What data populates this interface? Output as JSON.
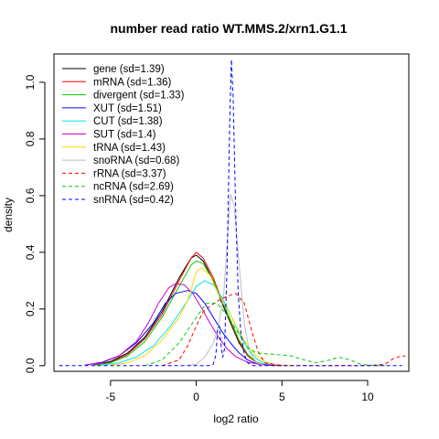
{
  "chart_data": {
    "type": "line",
    "title": "number read ratio WT.MMS.2/xrn1.G1.1",
    "xlabel": "log2 ratio",
    "ylabel": "density",
    "xlim": [
      -8.3,
      12.4
    ],
    "ylim": [
      -0.02,
      1.1
    ],
    "xticks": [
      -5,
      0,
      5,
      10
    ],
    "yticks": [
      0.0,
      0.2,
      0.4,
      0.6,
      0.8,
      1.0
    ],
    "xtick_labels": [
      "-5",
      "0",
      "5",
      "10"
    ],
    "ytick_labels": [
      "0.0",
      "0.2",
      "0.4",
      "0.6",
      "0.8",
      "1.0"
    ],
    "grid": false,
    "legend_position": "top-left",
    "series": [
      {
        "name": "gene (sd=1.39)",
        "color": "#000000",
        "dash": false,
        "points": [
          [
            -6,
            0.002
          ],
          [
            -5,
            0.015
          ],
          [
            -4,
            0.045
          ],
          [
            -3,
            0.1
          ],
          [
            -2,
            0.19
          ],
          [
            -1,
            0.31
          ],
          [
            -0.3,
            0.38
          ],
          [
            0,
            0.39
          ],
          [
            0.4,
            0.37
          ],
          [
            1,
            0.3
          ],
          [
            1.5,
            0.22
          ],
          [
            2,
            0.15
          ],
          [
            2.5,
            0.08
          ],
          [
            3,
            0.035
          ],
          [
            3.5,
            0.012
          ],
          [
            4,
            0.003
          ],
          [
            5,
            0
          ]
        ]
      },
      {
        "name": "mRNA (sd=1.36)",
        "color": "#ff0000",
        "dash": false,
        "points": [
          [
            -6,
            0.002
          ],
          [
            -5,
            0.012
          ],
          [
            -4,
            0.04
          ],
          [
            -3,
            0.095
          ],
          [
            -2,
            0.18
          ],
          [
            -1,
            0.3
          ],
          [
            -0.3,
            0.38
          ],
          [
            0,
            0.4
          ],
          [
            0.4,
            0.38
          ],
          [
            1,
            0.31
          ],
          [
            1.5,
            0.23
          ],
          [
            2,
            0.155
          ],
          [
            2.5,
            0.085
          ],
          [
            3,
            0.035
          ],
          [
            3.5,
            0.012
          ],
          [
            4,
            0.003
          ],
          [
            5,
            0
          ]
        ]
      },
      {
        "name": "divergent (sd=1.33)",
        "color": "#00cd00",
        "dash": false,
        "points": [
          [
            -6,
            0.001
          ],
          [
            -5,
            0.01
          ],
          [
            -4,
            0.035
          ],
          [
            -3,
            0.085
          ],
          [
            -2,
            0.17
          ],
          [
            -1,
            0.28
          ],
          [
            -0.3,
            0.355
          ],
          [
            0,
            0.37
          ],
          [
            0.4,
            0.36
          ],
          [
            1,
            0.3
          ],
          [
            1.5,
            0.23
          ],
          [
            2,
            0.16
          ],
          [
            2.5,
            0.09
          ],
          [
            3,
            0.04
          ],
          [
            3.5,
            0.013
          ],
          [
            4,
            0.003
          ],
          [
            5,
            0
          ]
        ]
      },
      {
        "name": "XUT (sd=1.51)",
        "color": "#0000ff",
        "dash": false,
        "points": [
          [
            -6.5,
            0.002
          ],
          [
            -5.5,
            0.012
          ],
          [
            -4.5,
            0.035
          ],
          [
            -3.5,
            0.08
          ],
          [
            -2.5,
            0.15
          ],
          [
            -1.8,
            0.22
          ],
          [
            -1.2,
            0.255
          ],
          [
            -0.5,
            0.265
          ],
          [
            0,
            0.255
          ],
          [
            0.5,
            0.22
          ],
          [
            1,
            0.17
          ],
          [
            1.5,
            0.12
          ],
          [
            2,
            0.08
          ],
          [
            2.5,
            0.045
          ],
          [
            3,
            0.02
          ],
          [
            3.5,
            0.007
          ],
          [
            4.5,
            0
          ]
        ]
      },
      {
        "name": "CUT (sd=1.38)",
        "color": "#00e5ee",
        "dash": false,
        "points": [
          [
            -5.5,
            0.002
          ],
          [
            -4.5,
            0.01
          ],
          [
            -3.5,
            0.03
          ],
          [
            -2.5,
            0.07
          ],
          [
            -1.5,
            0.14
          ],
          [
            -0.5,
            0.23
          ],
          [
            0,
            0.28
          ],
          [
            0.5,
            0.3
          ],
          [
            1,
            0.285
          ],
          [
            1.5,
            0.24
          ],
          [
            2,
            0.18
          ],
          [
            2.5,
            0.115
          ],
          [
            3,
            0.06
          ],
          [
            3.5,
            0.025
          ],
          [
            4,
            0.008
          ],
          [
            5,
            0
          ]
        ]
      },
      {
        "name": "SUT (sd=1.4)",
        "color": "#cc00cc",
        "dash": false,
        "points": [
          [
            -6.5,
            0.002
          ],
          [
            -5.5,
            0.01
          ],
          [
            -4.5,
            0.035
          ],
          [
            -3.5,
            0.085
          ],
          [
            -2.8,
            0.15
          ],
          [
            -2.2,
            0.22
          ],
          [
            -1.6,
            0.275
          ],
          [
            -1.2,
            0.29
          ],
          [
            -0.7,
            0.285
          ],
          [
            -0.2,
            0.255
          ],
          [
            0.3,
            0.205
          ],
          [
            0.8,
            0.15
          ],
          [
            1.3,
            0.1
          ],
          [
            1.8,
            0.06
          ],
          [
            2.3,
            0.032
          ],
          [
            3,
            0.012
          ],
          [
            4,
            0.002
          ],
          [
            5,
            0
          ]
        ]
      },
      {
        "name": "tRNA (sd=1.43)",
        "color": "#ffd700",
        "dash": false,
        "points": [
          [
            -5,
            0.002
          ],
          [
            -4,
            0.01
          ],
          [
            -3,
            0.035
          ],
          [
            -2,
            0.09
          ],
          [
            -1,
            0.17
          ],
          [
            -0.5,
            0.23
          ],
          [
            0,
            0.33
          ],
          [
            0.3,
            0.345
          ],
          [
            0.8,
            0.32
          ],
          [
            1.3,
            0.25
          ],
          [
            2,
            0.18
          ],
          [
            2.5,
            0.12
          ],
          [
            3,
            0.07
          ],
          [
            3.5,
            0.035
          ],
          [
            4,
            0.015
          ],
          [
            4.5,
            0.005
          ],
          [
            5.5,
            0
          ]
        ]
      },
      {
        "name": "snoRNA (sd=0.68)",
        "color": "#bebebe",
        "dash": false,
        "points": [
          [
            -0.5,
            0.001
          ],
          [
            0,
            0.005
          ],
          [
            0.5,
            0.03
          ],
          [
            1,
            0.08
          ],
          [
            1.3,
            0.14
          ],
          [
            1.6,
            0.25
          ],
          [
            1.85,
            0.48
          ],
          [
            2.0,
            0.605
          ],
          [
            2.2,
            0.57
          ],
          [
            2.5,
            0.36
          ],
          [
            2.8,
            0.15
          ],
          [
            3.1,
            0.05
          ],
          [
            3.5,
            0.012
          ],
          [
            4,
            0
          ]
        ]
      },
      {
        "name": "rRNA (sd=3.37)",
        "color": "#ff0000",
        "dash": true,
        "points": [
          [
            -2,
            0
          ],
          [
            -1,
            0.02
          ],
          [
            -0.5,
            0.07
          ],
          [
            0,
            0.14
          ],
          [
            0.4,
            0.19
          ],
          [
            0.8,
            0.21
          ],
          [
            1.3,
            0.23
          ],
          [
            1.8,
            0.245
          ],
          [
            2.3,
            0.255
          ],
          [
            2.8,
            0.22
          ],
          [
            3.2,
            0.13
          ],
          [
            3.6,
            0.05
          ],
          [
            4,
            0.01
          ],
          [
            5,
            0
          ],
          [
            10,
            0
          ],
          [
            11,
            0.005
          ],
          [
            11.5,
            0.025
          ],
          [
            12,
            0.035
          ],
          [
            12.2,
            0.033
          ]
        ]
      },
      {
        "name": "ncRNA (sd=2.69)",
        "color": "#00cd00",
        "dash": true,
        "points": [
          [
            -3,
            0
          ],
          [
            -2,
            0.02
          ],
          [
            -1,
            0.08
          ],
          [
            0,
            0.17
          ],
          [
            0.6,
            0.22
          ],
          [
            1.2,
            0.22
          ],
          [
            1.8,
            0.18
          ],
          [
            2.5,
            0.11
          ],
          [
            3,
            0.065
          ],
          [
            3.5,
            0.045
          ],
          [
            4.5,
            0.04
          ],
          [
            5.5,
            0.035
          ],
          [
            6.3,
            0.02
          ],
          [
            7,
            0.01
          ],
          [
            7.8,
            0.02
          ],
          [
            8.3,
            0.03
          ],
          [
            9,
            0.02
          ],
          [
            9.6,
            0.005
          ],
          [
            10.5,
            0
          ],
          [
            11,
            0.001
          ]
        ]
      },
      {
        "name": "snRNA (sd=0.42)",
        "color": "#0000ff",
        "dash": true,
        "points": [
          [
            -8,
            0
          ],
          [
            0.8,
            0
          ],
          [
            1.0,
            0.005
          ],
          [
            1.15,
            0.04
          ],
          [
            1.25,
            0.13
          ],
          [
            1.35,
            0.14
          ],
          [
            1.45,
            0.07
          ],
          [
            1.55,
            0.03
          ],
          [
            1.65,
            0.06
          ],
          [
            1.8,
            0.35
          ],
          [
            1.95,
            0.85
          ],
          [
            2.05,
            1.08
          ],
          [
            2.15,
            0.95
          ],
          [
            2.3,
            0.55
          ],
          [
            2.45,
            0.25
          ],
          [
            2.6,
            0.12
          ],
          [
            2.8,
            0.04
          ],
          [
            3.0,
            0.01
          ],
          [
            3.3,
            0
          ],
          [
            12,
            0
          ]
        ]
      }
    ]
  }
}
